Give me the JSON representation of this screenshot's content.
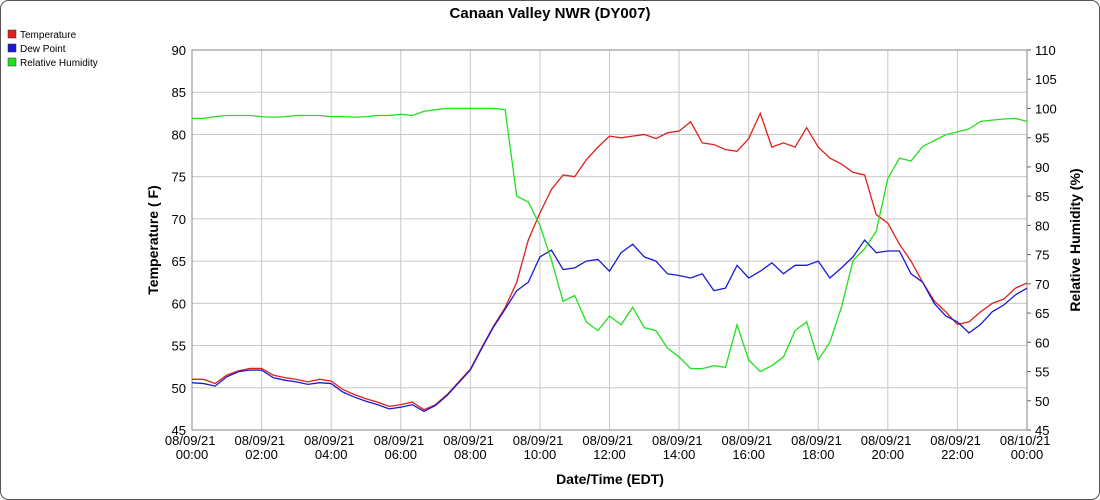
{
  "chart_data": {
    "type": "line",
    "title": "Canaan Valley NWR (DY007)",
    "xlabel": "Date/Time (EDT)",
    "ylabel": "Temperature ( F)",
    "y2label": "Relative Humidity (%)",
    "grid": true,
    "legend": "top-left",
    "x": [
      0,
      20,
      40,
      60,
      80,
      100,
      120,
      140,
      160,
      180,
      200,
      220,
      240,
      260,
      280,
      300,
      320,
      340,
      360,
      380,
      400,
      420,
      440,
      460,
      480,
      500,
      520,
      540,
      560,
      580,
      600,
      620,
      640,
      660,
      680,
      700,
      720,
      740,
      760,
      780,
      800,
      820,
      840,
      860,
      880,
      900,
      920,
      940,
      960,
      980,
      1000,
      1020,
      1040,
      1060,
      1080,
      1100,
      1120,
      1140,
      1160,
      1180,
      1200,
      1220,
      1240,
      1260,
      1280,
      1300,
      1320,
      1340,
      1360,
      1380,
      1400,
      1420,
      1440
    ],
    "xlim": [
      0,
      1440
    ],
    "xticks": [
      {
        "value": 0,
        "label": "08/09/21 00:00"
      },
      {
        "value": 120,
        "label": "08/09/21 02:00"
      },
      {
        "value": 240,
        "label": "08/09/21 04:00"
      },
      {
        "value": 360,
        "label": "08/09/21 06:00"
      },
      {
        "value": 480,
        "label": "08/09/21 08:00"
      },
      {
        "value": 600,
        "label": "08/09/21 10:00"
      },
      {
        "value": 720,
        "label": "08/09/21 12:00"
      },
      {
        "value": 840,
        "label": "08/09/21 14:00"
      },
      {
        "value": 960,
        "label": "08/09/21 16:00"
      },
      {
        "value": 1080,
        "label": "08/09/21 18:00"
      },
      {
        "value": 1200,
        "label": "08/09/21 20:00"
      },
      {
        "value": 1320,
        "label": "08/09/21 22:00"
      },
      {
        "value": 1440,
        "label": "08/10/21 00:00"
      }
    ],
    "ylim": [
      45,
      90
    ],
    "yticks": [
      45,
      50,
      55,
      60,
      65,
      70,
      75,
      80,
      85,
      90
    ],
    "y2lim": [
      45,
      110
    ],
    "y2ticks": [
      45,
      50,
      55,
      60,
      65,
      70,
      75,
      80,
      85,
      90,
      95,
      100,
      105,
      110
    ],
    "series": [
      {
        "name": "Temperature",
        "color": "#e0201b",
        "values": [
          51,
          51,
          50.5,
          51.5,
          52,
          52.3,
          52.3,
          51.5,
          51.2,
          51,
          50.7,
          51,
          50.8,
          49.8,
          49.2,
          48.7,
          48.3,
          47.8,
          48,
          48.3,
          47.4,
          48,
          49.2,
          50.7,
          52.2,
          54.8,
          57.3,
          59.5,
          62.5,
          67.5,
          70.7,
          73.5,
          75.2,
          75,
          77,
          78.5,
          79.8,
          79.6,
          79.8,
          80,
          79.5,
          80.2,
          80.4,
          81.5,
          79,
          78.8,
          78.2,
          78,
          79.5,
          82.5,
          78.5,
          79,
          78.5,
          80.8,
          78.5,
          77.2,
          76.5,
          75.5,
          75.2,
          70.5,
          69.5,
          67,
          65,
          62.5,
          60.3,
          59,
          57.5,
          57.8,
          59,
          60,
          60.5,
          61.8,
          62.4
        ]
      },
      {
        "name": "Dew Point",
        "color": "#1a1ad6",
        "values": [
          50.6,
          50.5,
          50.2,
          51.3,
          51.9,
          52.1,
          52.1,
          51.2,
          50.9,
          50.7,
          50.4,
          50.6,
          50.5,
          49.5,
          48.9,
          48.4,
          48,
          47.5,
          47.7,
          48,
          47.2,
          47.9,
          49.1,
          50.6,
          52.1,
          54.7,
          57.2,
          59.3,
          61.5,
          62.5,
          65.5,
          66.3,
          64,
          64.2,
          65,
          65.2,
          63.8,
          66,
          67,
          65.5,
          65,
          63.5,
          63.3,
          63,
          63.5,
          61.5,
          61.8,
          64.5,
          63,
          63.8,
          64.8,
          63.5,
          64.5,
          64.5,
          65,
          63,
          64.2,
          65.5,
          67.5,
          66,
          66.2,
          66.2,
          63.5,
          62.5,
          60,
          58.5,
          57.8,
          56.5,
          57.5,
          59,
          59.8,
          61,
          61.8
        ]
      },
      {
        "name": "Relative Humidity",
        "color": "#22e01e",
        "axis": "y2",
        "values": [
          98.3,
          98.3,
          98.6,
          98.8,
          98.8,
          98.8,
          98.6,
          98.5,
          98.6,
          98.8,
          98.8,
          98.8,
          98.6,
          98.6,
          98.5,
          98.6,
          98.8,
          98.8,
          99,
          98.8,
          99.5,
          99.8,
          100,
          100,
          100,
          100,
          100,
          99.8,
          85,
          84,
          80,
          74,
          67,
          68,
          63.5,
          62,
          64.5,
          63,
          66,
          62.5,
          62,
          59,
          57.5,
          55.5,
          55.5,
          56,
          55.7,
          63,
          57,
          55,
          56,
          57.5,
          62,
          63.5,
          57,
          60,
          66,
          74,
          76,
          79,
          88,
          91.5,
          91,
          93.5,
          94.5,
          95.5,
          96,
          96.5,
          97.8,
          98,
          98.2,
          98.3,
          97.8
        ]
      }
    ]
  }
}
